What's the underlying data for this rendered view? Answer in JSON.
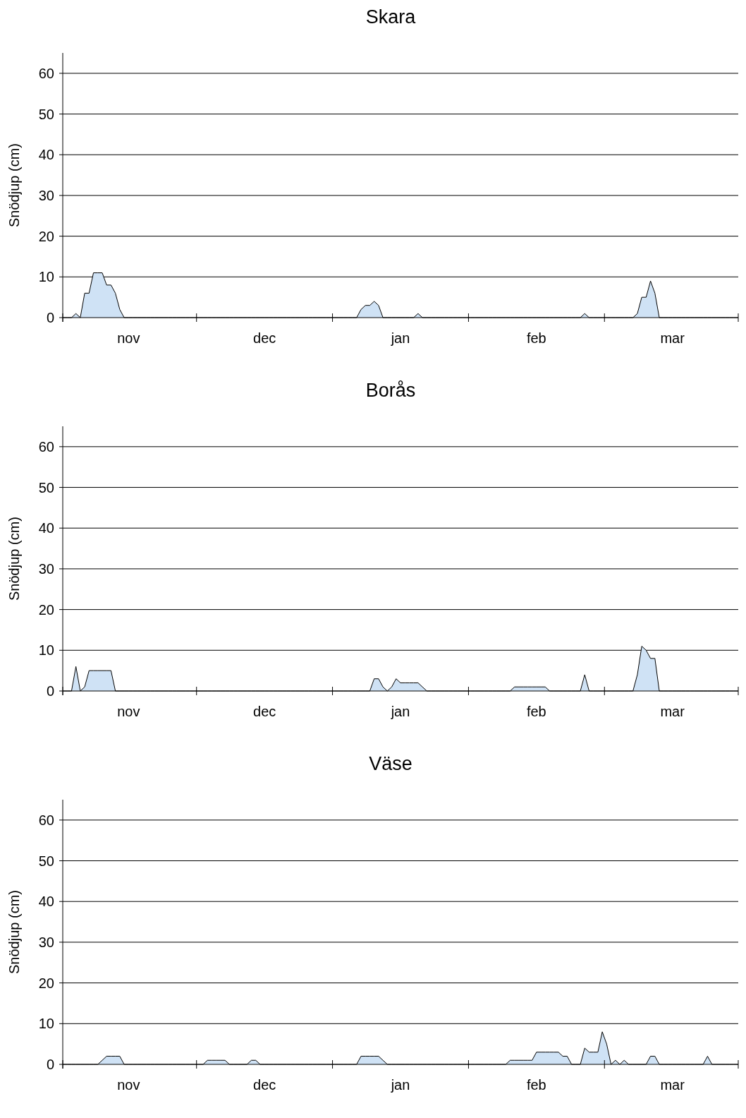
{
  "chart_data": [
    {
      "type": "area",
      "title": "Skara",
      "ylabel": "Snödjup (cm)",
      "ylim": [
        0,
        65
      ],
      "yticks": [
        0,
        10,
        20,
        30,
        40,
        50,
        60
      ],
      "grid": "y",
      "categories": [
        null,
        null,
        null,
        null,
        null,
        null,
        null,
        null,
        null,
        null,
        null,
        null,
        null,
        null,
        null,
        "nov",
        null,
        null,
        null,
        null,
        null,
        null,
        null,
        null,
        null,
        null,
        null,
        null,
        null,
        null,
        null,
        null,
        null,
        null,
        null,
        null,
        null,
        null,
        null,
        null,
        null,
        null,
        null,
        null,
        null,
        null,
        "dec",
        null,
        null,
        null,
        null,
        null,
        null,
        null,
        null,
        null,
        null,
        null,
        null,
        null,
        null,
        null,
        null,
        null,
        null,
        null,
        null,
        null,
        null,
        null,
        null,
        null,
        null,
        null,
        null,
        null,
        null,
        "jan",
        null,
        null,
        null,
        null,
        null,
        null,
        null,
        null,
        null,
        null,
        null,
        null,
        null,
        null,
        null,
        null,
        null,
        null,
        null,
        null,
        null,
        null,
        null,
        null,
        null,
        null,
        null,
        null,
        null,
        null,
        "feb",
        null,
        null,
        null,
        null,
        null,
        null,
        null,
        null,
        null,
        null,
        null,
        null,
        null,
        null,
        null,
        null,
        null,
        null,
        null,
        null,
        null,
        null,
        null,
        null,
        null,
        null,
        null,
        null,
        null,
        null,
        "mar",
        null,
        null,
        null,
        null,
        null,
        null,
        null,
        null,
        null,
        null,
        null,
        null,
        null,
        null,
        null
      ],
      "series": [
        {
          "color": "#cfe2f5",
          "values": [
            0,
            0,
            0,
            1,
            0,
            6,
            6,
            11,
            11,
            11,
            8,
            8,
            6,
            2,
            0,
            0,
            0,
            0,
            0,
            0,
            0,
            0,
            0,
            0,
            0,
            0,
            0,
            0,
            0,
            0,
            0,
            0,
            0,
            0,
            0,
            0,
            0,
            0,
            0,
            0,
            0,
            0,
            0,
            0,
            0,
            0,
            0,
            0,
            0,
            0,
            0,
            0,
            0,
            0,
            0,
            0,
            0,
            0,
            0,
            0,
            0,
            0,
            0,
            0,
            0,
            0,
            0,
            0,
            2,
            3,
            3,
            4,
            3,
            0,
            0,
            0,
            0,
            0,
            0,
            0,
            0,
            1,
            0,
            0,
            0,
            0,
            0,
            0,
            0,
            0,
            0,
            0,
            0,
            0,
            0,
            0,
            0,
            0,
            0,
            0,
            0,
            0,
            0,
            0,
            0,
            0,
            0,
            0,
            0,
            0,
            0,
            0,
            0,
            0,
            0,
            0,
            0,
            0,
            0,
            1,
            0,
            0,
            0,
            0,
            0,
            0,
            0,
            0,
            0,
            0,
            0,
            1,
            5,
            5,
            9,
            6,
            0,
            0,
            0,
            0,
            0,
            0,
            0,
            0,
            0,
            0,
            0,
            0,
            0,
            0,
            0,
            0,
            0,
            0,
            0
          ]
        }
      ]
    },
    {
      "type": "area",
      "title": "Borås",
      "ylabel": "Snödjup (cm)",
      "ylim": [
        0,
        65
      ],
      "yticks": [
        0,
        10,
        20,
        30,
        40,
        50,
        60
      ],
      "grid": "y",
      "categories": [
        null,
        null,
        null,
        null,
        null,
        null,
        null,
        null,
        null,
        null,
        null,
        null,
        null,
        null,
        null,
        "nov",
        null,
        null,
        null,
        null,
        null,
        null,
        null,
        null,
        null,
        null,
        null,
        null,
        null,
        null,
        null,
        null,
        null,
        null,
        null,
        null,
        null,
        null,
        null,
        null,
        null,
        null,
        null,
        null,
        null,
        null,
        "dec",
        null,
        null,
        null,
        null,
        null,
        null,
        null,
        null,
        null,
        null,
        null,
        null,
        null,
        null,
        null,
        null,
        null,
        null,
        null,
        null,
        null,
        null,
        null,
        null,
        null,
        null,
        null,
        null,
        null,
        null,
        "jan",
        null,
        null,
        null,
        null,
        null,
        null,
        null,
        null,
        null,
        null,
        null,
        null,
        null,
        null,
        null,
        null,
        null,
        null,
        null,
        null,
        null,
        null,
        null,
        null,
        null,
        null,
        null,
        null,
        null,
        null,
        "feb",
        null,
        null,
        null,
        null,
        null,
        null,
        null,
        null,
        null,
        null,
        null,
        null,
        null,
        null,
        null,
        null,
        null,
        null,
        null,
        null,
        null,
        null,
        null,
        null,
        null,
        null,
        null,
        null,
        null,
        null,
        "mar",
        null,
        null,
        null,
        null,
        null,
        null,
        null,
        null,
        null,
        null,
        null,
        null,
        null,
        null,
        null
      ],
      "series": [
        {
          "color": "#cfe2f5",
          "values": [
            0,
            0,
            0,
            6,
            0,
            1,
            5,
            5,
            5,
            5,
            5,
            5,
            0,
            0,
            0,
            0,
            0,
            0,
            0,
            0,
            0,
            0,
            0,
            0,
            0,
            0,
            0,
            0,
            0,
            0,
            0,
            0,
            0,
            0,
            0,
            0,
            0,
            0,
            0,
            0,
            0,
            0,
            0,
            0,
            0,
            0,
            0,
            0,
            0,
            0,
            0,
            0,
            0,
            0,
            0,
            0,
            0,
            0,
            0,
            0,
            0,
            0,
            0,
            0,
            0,
            0,
            0,
            0,
            0,
            0,
            0,
            3,
            3,
            1,
            0,
            1,
            3,
            2,
            2,
            2,
            2,
            2,
            1,
            0,
            0,
            0,
            0,
            0,
            0,
            0,
            0,
            0,
            0,
            0,
            0,
            0,
            0,
            0,
            0,
            0,
            0,
            0,
            0,
            1,
            1,
            1,
            1,
            1,
            1,
            1,
            1,
            0,
            0,
            0,
            0,
            0,
            0,
            0,
            0,
            4,
            0,
            0,
            0,
            0,
            0,
            0,
            0,
            0,
            0,
            0,
            0,
            4,
            11,
            10,
            8,
            8,
            0,
            0,
            0,
            0,
            0,
            0,
            0,
            0,
            0,
            0,
            0,
            0,
            0,
            0,
            0,
            0,
            0,
            0,
            0
          ]
        }
      ]
    },
    {
      "type": "area",
      "title": "Väse",
      "ylabel": "Snödjup (cm)",
      "ylim": [
        0,
        65
      ],
      "yticks": [
        0,
        10,
        20,
        30,
        40,
        50,
        60
      ],
      "grid": "y",
      "categories": [
        null,
        null,
        null,
        null,
        null,
        null,
        null,
        null,
        null,
        null,
        null,
        null,
        null,
        null,
        null,
        "nov",
        null,
        null,
        null,
        null,
        null,
        null,
        null,
        null,
        null,
        null,
        null,
        null,
        null,
        null,
        null,
        null,
        null,
        null,
        null,
        null,
        null,
        null,
        null,
        null,
        null,
        null,
        null,
        null,
        null,
        null,
        "dec",
        null,
        null,
        null,
        null,
        null,
        null,
        null,
        null,
        null,
        null,
        null,
        null,
        null,
        null,
        null,
        null,
        null,
        null,
        null,
        null,
        null,
        null,
        null,
        null,
        null,
        null,
        null,
        null,
        null,
        null,
        "jan",
        null,
        null,
        null,
        null,
        null,
        null,
        null,
        null,
        null,
        null,
        null,
        null,
        null,
        null,
        null,
        null,
        null,
        null,
        null,
        null,
        null,
        null,
        null,
        null,
        null,
        null,
        null,
        null,
        null,
        null,
        "feb",
        null,
        null,
        null,
        null,
        null,
        null,
        null,
        null,
        null,
        null,
        null,
        null,
        null,
        null,
        null,
        null,
        null,
        null,
        null,
        null,
        null,
        null,
        null,
        null,
        null,
        null,
        null,
        null,
        null,
        null,
        "mar",
        null,
        null,
        null,
        null,
        null,
        null,
        null,
        null,
        null,
        null,
        null,
        null,
        null,
        null,
        null
      ],
      "series": [
        {
          "color": "#cfe2f5",
          "values": [
            0,
            0,
            0,
            0,
            0,
            0,
            0,
            0,
            0,
            1,
            2,
            2,
            2,
            2,
            0,
            0,
            0,
            0,
            0,
            0,
            0,
            0,
            0,
            0,
            0,
            0,
            0,
            0,
            0,
            0,
            0,
            0,
            0,
            1,
            1,
            1,
            1,
            1,
            0,
            0,
            0,
            0,
            0,
            1,
            1,
            0,
            0,
            0,
            0,
            0,
            0,
            0,
            0,
            0,
            0,
            0,
            0,
            0,
            0,
            0,
            0,
            0,
            0,
            0,
            0,
            0,
            0,
            0,
            2,
            2,
            2,
            2,
            2,
            1,
            0,
            0,
            0,
            0,
            0,
            0,
            0,
            0,
            0,
            0,
            0,
            0,
            0,
            0,
            0,
            0,
            0,
            0,
            0,
            0,
            0,
            0,
            0,
            0,
            0,
            0,
            0,
            0,
            1,
            1,
            1,
            1,
            1,
            1,
            3,
            3,
            3,
            3,
            3,
            3,
            2,
            2,
            0,
            0,
            0,
            4,
            3,
            3,
            3,
            8,
            5,
            0,
            1,
            0,
            1,
            0,
            0,
            0,
            0,
            0,
            2,
            2,
            0,
            0,
            0,
            0,
            0,
            0,
            0,
            0,
            0,
            0,
            0,
            2,
            0,
            0,
            0,
            0,
            0,
            0,
            0
          ]
        }
      ]
    }
  ]
}
